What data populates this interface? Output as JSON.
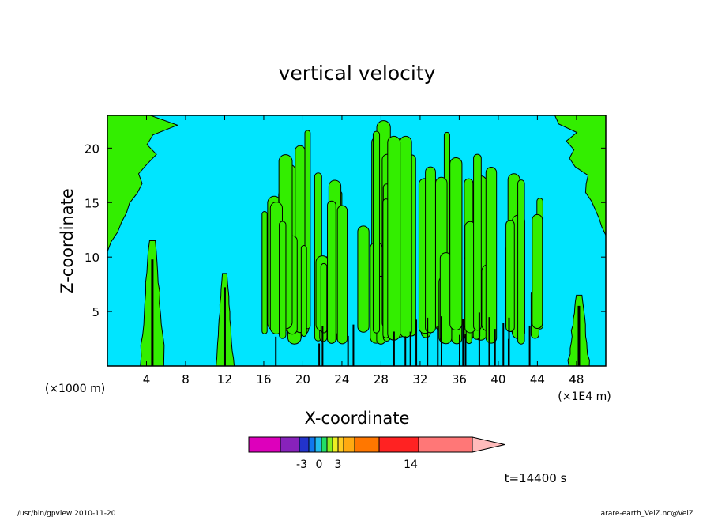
{
  "chart_data": {
    "type": "heatmap",
    "title": "vertical velocity",
    "xlabel": "X-coordinate",
    "ylabel": "Z-coordinate",
    "x_unit_note_left": "(×1000 m)",
    "x_unit_note_right": "(×1E4 m)",
    "xlim": [
      0,
      51
    ],
    "ylim": [
      0,
      23
    ],
    "x_ticks": [
      "4",
      "8",
      "12",
      "16",
      "20",
      "24",
      "28",
      "32",
      "36",
      "40",
      "44",
      "48"
    ],
    "y_ticks": [
      "5",
      "10",
      "15",
      "20"
    ],
    "background_fill": "#00e5ff",
    "positive_fill": "#33ee00",
    "contour_color": "#000000",
    "positive_regions": [
      {
        "x0": 0.0,
        "x1": 8.0,
        "z0": 10.5,
        "z1": 23.0,
        "kind": "wedge"
      },
      {
        "x0": 45.0,
        "x1": 51.0,
        "z0": 12.0,
        "z1": 23.0,
        "kind": "wedge"
      },
      {
        "x0": 3.2,
        "x1": 6.0,
        "z0": 0.0,
        "z1": 11.5,
        "kind": "updraft"
      },
      {
        "x0": 11.0,
        "x1": 13.0,
        "z0": 0.0,
        "z1": 8.5,
        "kind": "updraft"
      },
      {
        "x0": 47.0,
        "x1": 49.5,
        "z0": 0.0,
        "z1": 6.5,
        "kind": "updraft"
      },
      {
        "x0": 16.0,
        "x1": 45.0,
        "z0": 2.0,
        "z1": 23.0,
        "kind": "cells"
      }
    ],
    "colorbar": {
      "colors": [
        "#dd00bb",
        "#8822bb",
        "#2233cc",
        "#1177ee",
        "#22bbee",
        "#22dd66",
        "#88ee22",
        "#eeee22",
        "#ffcc22",
        "#ffaa11",
        "#ff7700",
        "#ff2222",
        "#ff7777",
        "#ffbbbb"
      ],
      "labels": [
        "-3",
        "0",
        "3",
        "14"
      ]
    }
  },
  "annotations": {
    "time": "t=14400 s",
    "footer_left": "/usr/bin/gpview 2010-11-20",
    "footer_right": "arare-earth_VelZ.nc@VelZ"
  }
}
